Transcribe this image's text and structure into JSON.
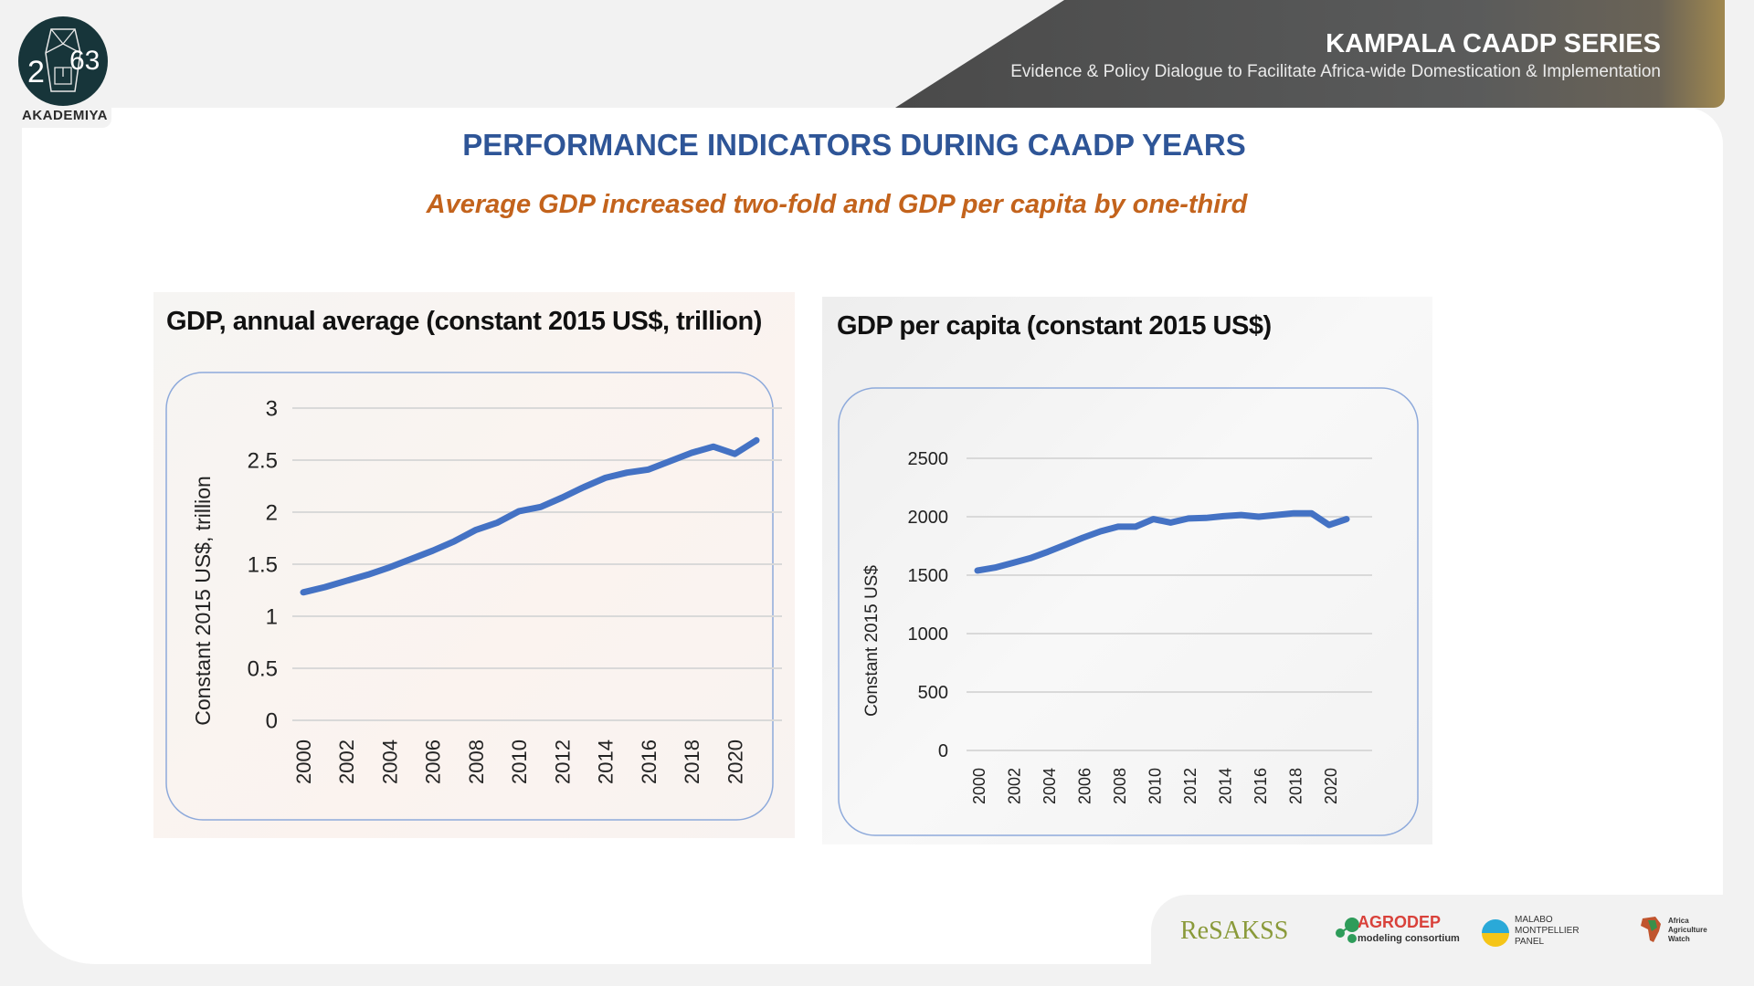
{
  "header": {
    "logo_name": "AKADEMIYA",
    "logo_number_left": "2",
    "logo_number_right": "63",
    "series_title": "KAMPALA CAADP SERIES",
    "series_subtitle": "Evidence & Policy Dialogue to Facilitate Africa-wide Domestication & Implementation"
  },
  "slide": {
    "title": "PERFORMANCE INDICATORS DURING CAADP YEARS",
    "subtitle": "Average GDP increased two-fold and GDP per capita by one-third",
    "title_color": "#2e5597",
    "subtitle_color": "#c3631c"
  },
  "chart_data": [
    {
      "type": "line",
      "title": "GDP, annual average (constant 2015 US$, trillion)",
      "xlabel": "",
      "ylabel": "Constant 2015 US$, trillion",
      "ylim": [
        0,
        3
      ],
      "yticks": [
        "0",
        "0.5",
        "1",
        "1.5",
        "2",
        "2.5",
        "3"
      ],
      "xticks": [
        "2000",
        "2002",
        "2004",
        "2006",
        "2008",
        "2010",
        "2012",
        "2014",
        "2016",
        "2018",
        "2020"
      ],
      "grid": true,
      "line_color": "#4472c4",
      "x": [
        2000,
        2001,
        2002,
        2003,
        2004,
        2005,
        2006,
        2007,
        2008,
        2009,
        2010,
        2011,
        2012,
        2013,
        2014,
        2015,
        2016,
        2017,
        2018,
        2019,
        2020,
        2021
      ],
      "series": [
        {
          "name": "GDP",
          "values": [
            1.23,
            1.28,
            1.34,
            1.4,
            1.47,
            1.55,
            1.63,
            1.72,
            1.83,
            1.9,
            2.01,
            2.05,
            2.14,
            2.24,
            2.33,
            2.38,
            2.41,
            2.49,
            2.57,
            2.63,
            2.56,
            2.69
          ]
        }
      ]
    },
    {
      "type": "line",
      "title": "GDP per capita (constant 2015 US$)",
      "xlabel": "",
      "ylabel": "Constant 2015 US$",
      "ylim": [
        0,
        2500
      ],
      "yticks": [
        "0",
        "500",
        "1000",
        "1500",
        "2000",
        "2500"
      ],
      "xticks": [
        "2000",
        "2002",
        "2004",
        "2006",
        "2008",
        "2010",
        "2012",
        "2014",
        "2016",
        "2018",
        "2020"
      ],
      "grid": true,
      "line_color": "#4472c4",
      "x": [
        2000,
        2001,
        2002,
        2003,
        2004,
        2005,
        2006,
        2007,
        2008,
        2009,
        2010,
        2011,
        2012,
        2013,
        2014,
        2015,
        2016,
        2017,
        2018,
        2019,
        2020,
        2021
      ],
      "series": [
        {
          "name": "GDP per capita",
          "values": [
            1540,
            1565,
            1605,
            1645,
            1700,
            1760,
            1820,
            1875,
            1915,
            1915,
            1980,
            1950,
            1985,
            1990,
            2005,
            2015,
            2000,
            2015,
            2030,
            2030,
            1930,
            1980
          ]
        }
      ]
    }
  ],
  "footer": {
    "logos": [
      {
        "name": "ReSAKSS",
        "color": "#8a9a3a"
      },
      {
        "name": "AGRODEP",
        "sub": "modeling consortium",
        "color": "#d9413a"
      },
      {
        "name": "MALABO",
        "line2": "MONTPELLIER",
        "line3": "PANEL",
        "color": "#333333"
      },
      {
        "name": "Africa",
        "line2": "Agriculture",
        "line3": "Watch",
        "color": "#333333"
      }
    ]
  }
}
